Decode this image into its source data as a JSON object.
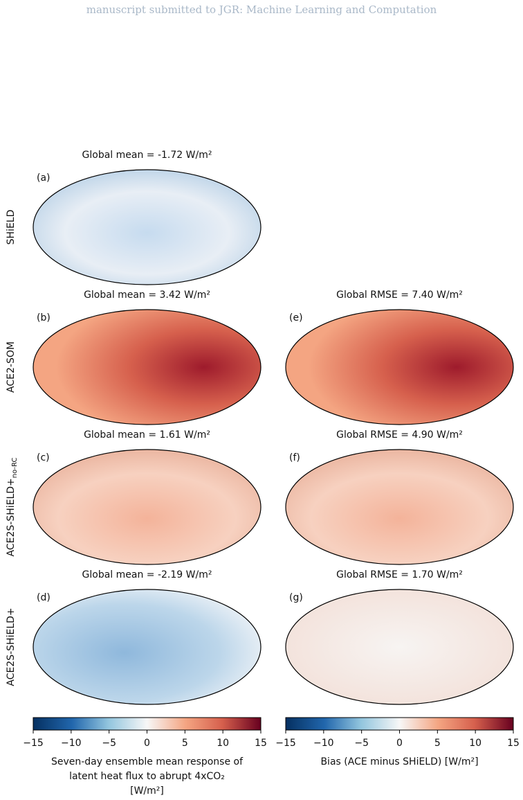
{
  "header": "manuscript submitted to JGR: Machine Learning and Computation",
  "rows": [
    {
      "label": {
        "main": "SHiELD"
      },
      "left": {
        "tag": "(a)",
        "title": "Global mean = -1.72 W/m²"
      }
    },
    {
      "label": {
        "main": "ACE2-SOM"
      },
      "left": {
        "tag": "(b)",
        "title": "Global mean = 3.42 W/m²"
      },
      "right": {
        "tag": "(e)",
        "title": "Global RMSE = 7.40 W/m²"
      }
    },
    {
      "label": {
        "main": "ACE2S-SHiELD+",
        "sub": "no-RC"
      },
      "left": {
        "tag": "(c)",
        "title": "Global mean = 1.61 W/m²"
      },
      "right": {
        "tag": "(f)",
        "title": "Global RMSE = 4.90 W/m²"
      }
    },
    {
      "label": {
        "main": "ACE2S-SHiELD+"
      },
      "left": {
        "tag": "(d)",
        "title": "Global mean = -2.19 W/m²"
      },
      "right": {
        "tag": "(g)",
        "title": "Global RMSE = 1.70 W/m²"
      }
    }
  ],
  "colorbars": [
    {
      "ticks": [
        {
          "value": -15,
          "label": "−15"
        },
        {
          "value": -10,
          "label": "−10"
        },
        {
          "value": -5,
          "label": "−5"
        },
        0,
        5,
        10,
        15
      ],
      "caption": [
        "Seven-day ensemble mean response of",
        "latent heat flux to abrupt 4xCO₂",
        "[W/m²]"
      ]
    },
    {
      "ticks": [
        {
          "value": -15,
          "label": "−15"
        },
        {
          "value": -10,
          "label": "−10"
        },
        {
          "value": -5,
          "label": "−5"
        },
        0,
        5,
        10,
        15
      ],
      "caption": [
        "Bias (ACE minus SHiELD) [W/m²]"
      ]
    }
  ]
}
